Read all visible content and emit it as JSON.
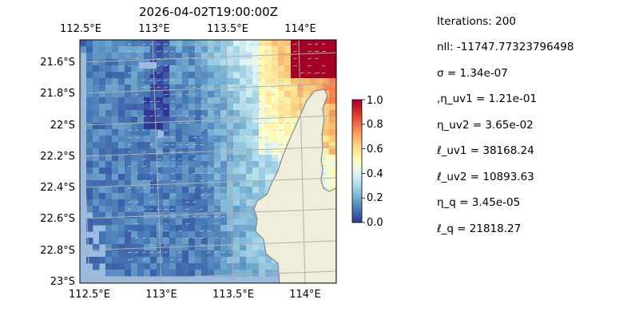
{
  "title": "2026-04-02T19:00:00Z",
  "lon_ticks": [
    "112.5°E",
    "113°E",
    "113.5°E",
    "114°E"
  ],
  "lat_ticks": [
    "21.6°S",
    "21.8°S",
    "22°S",
    "22.2°S",
    "22.4°S",
    "22.6°S",
    "22.8°S",
    "23°S"
  ],
  "colorbar": {
    "ticks": [
      "0.0",
      "0.2",
      "0.4",
      "0.6",
      "0.8",
      "1.0"
    ],
    "range": [
      0,
      1
    ],
    "colormap": "RdYlBu_r"
  },
  "stats": [
    "Iterations: 200",
    "nll: -11747.77323796498",
    "σ = 1.34e-07",
    ",η_uv1 = 1.21e-01",
    "η_uv2 = 3.65e-02",
    "ℓ_uv1 = 38168.24",
    "ℓ_uv2 = 10893.63",
    "η_q = 3.45e-05",
    "ℓ_q = 21818.27"
  ],
  "colors": {
    "ocean": "#9bbce1",
    "land": "#efeedb",
    "coast": "#808a98",
    "grid": "#b0b0b0"
  }
}
